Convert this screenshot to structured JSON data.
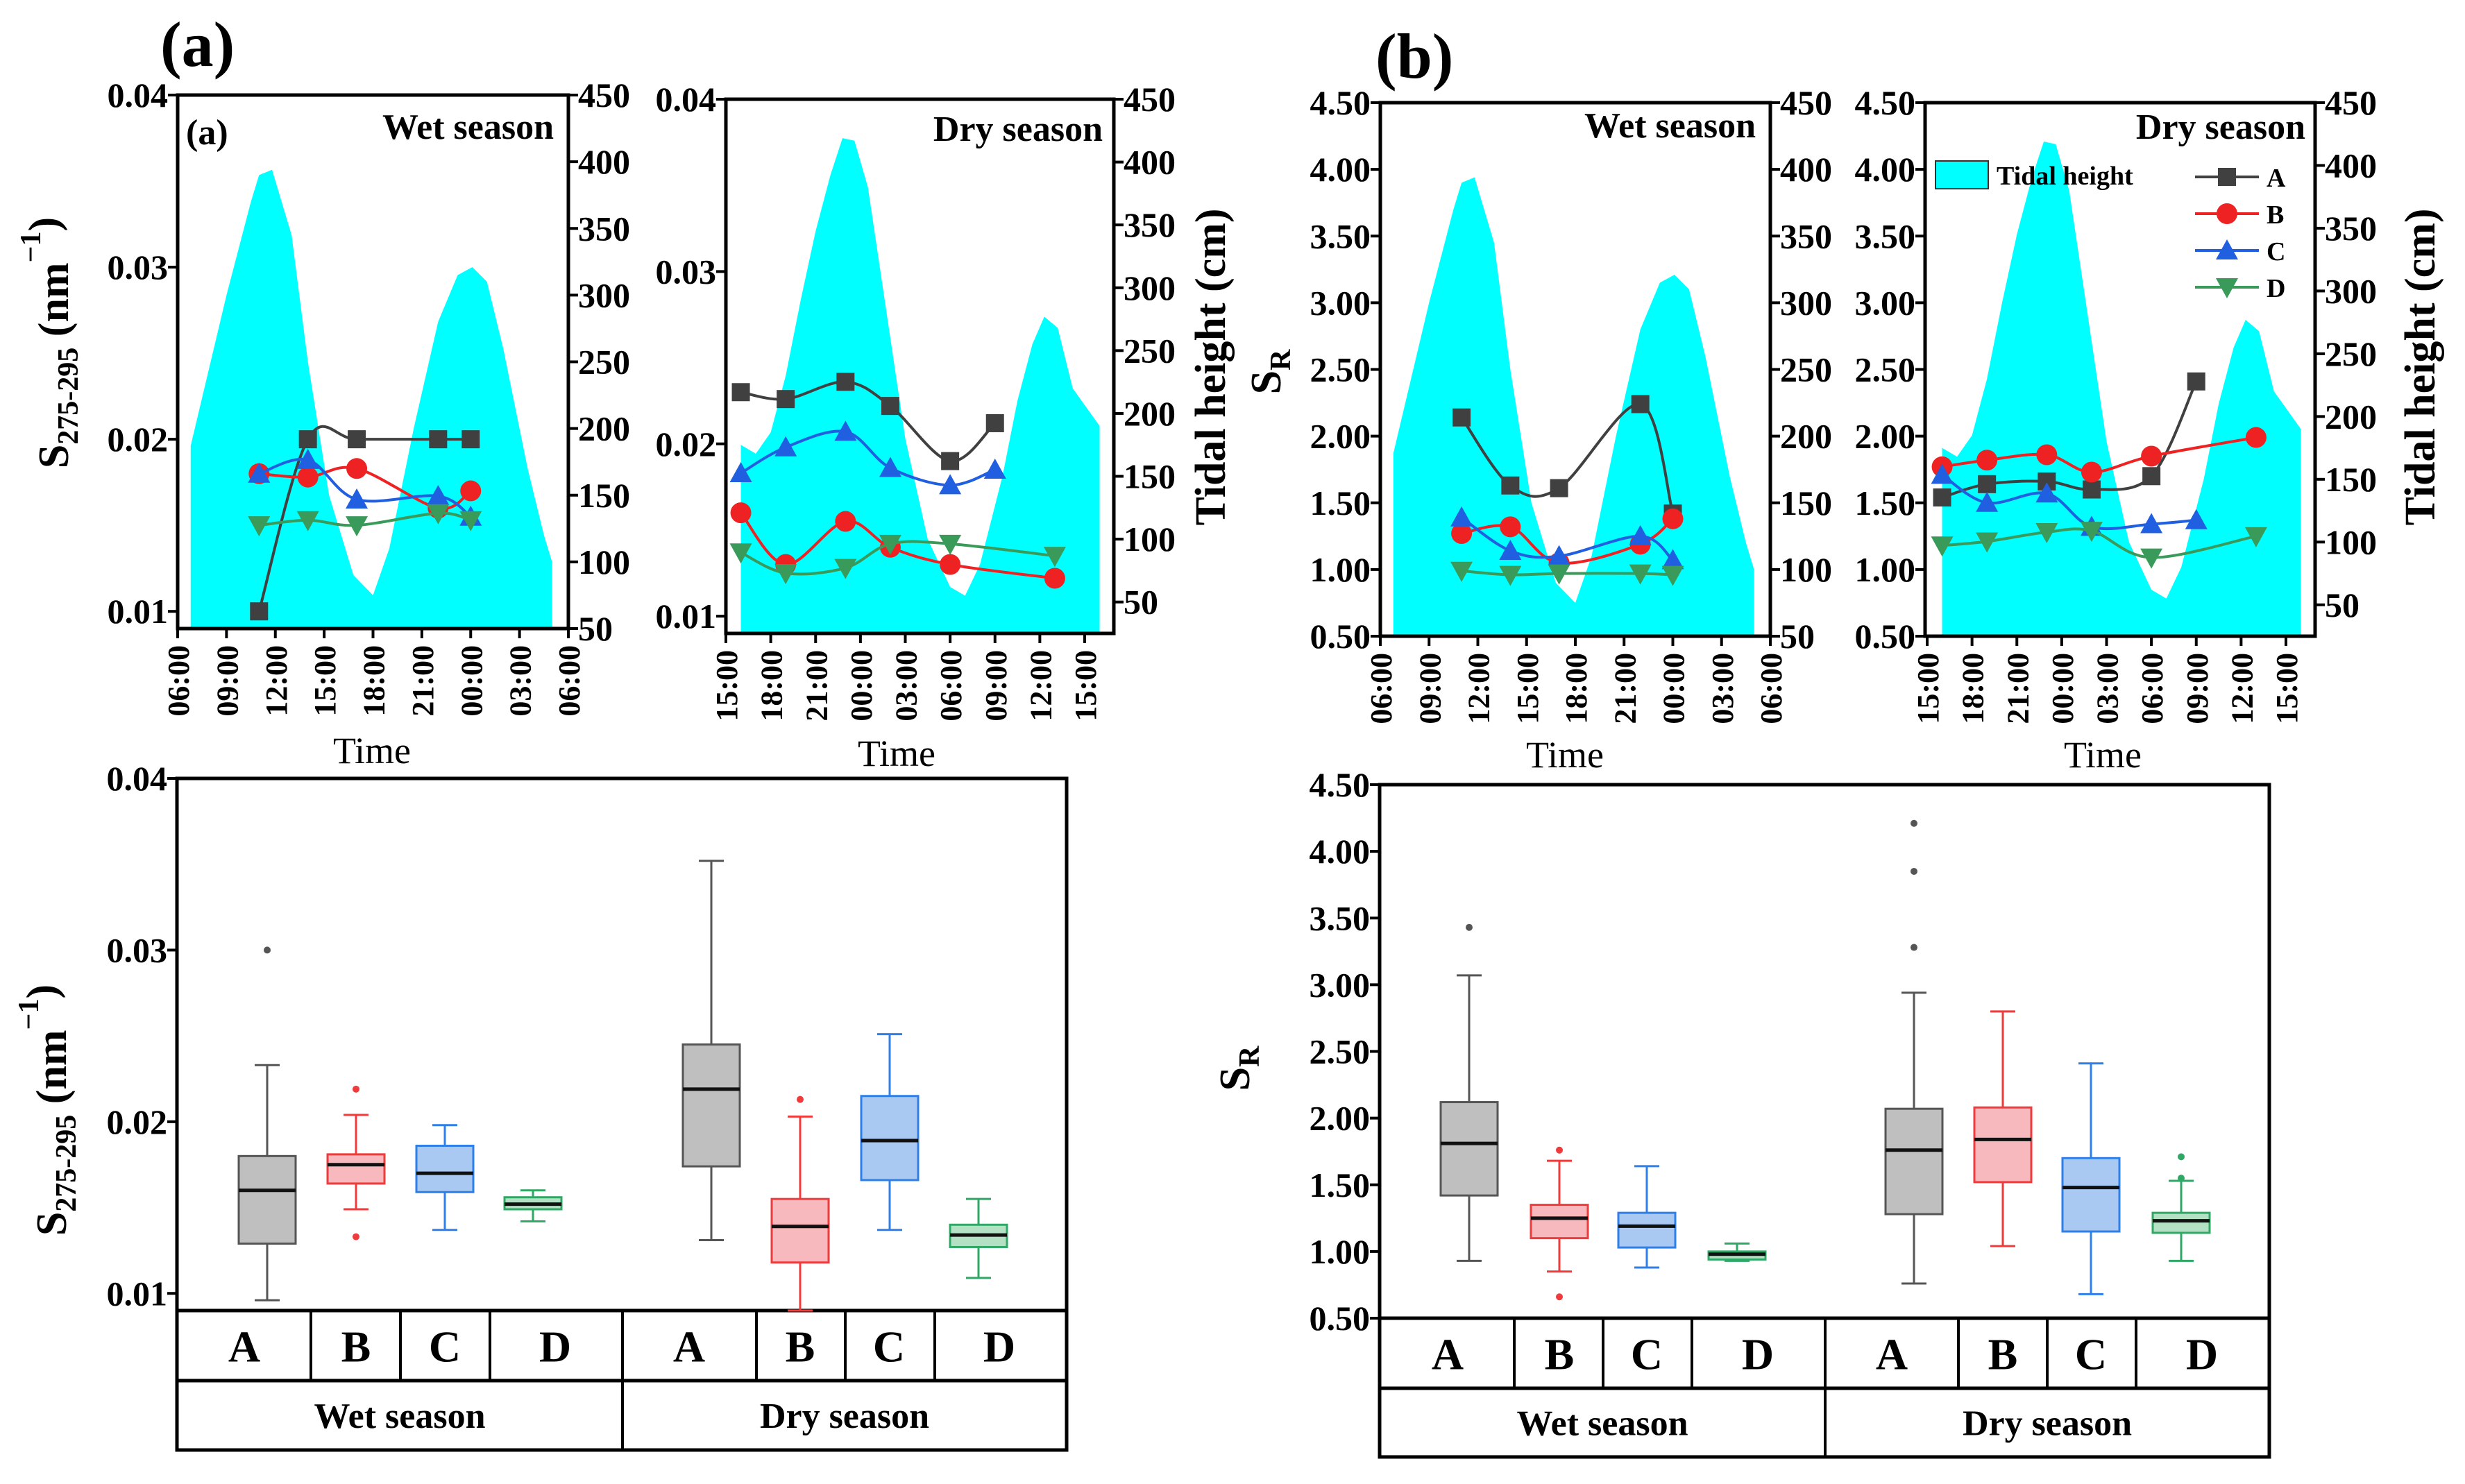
{
  "figure": {
    "panel_a": "(a)",
    "panel_b": "(b)",
    "inner_a": "(a)"
  },
  "colors": {
    "tide": "#00FFFF",
    "A": "#404040",
    "B": "#EE2222",
    "C": "#1F5FE0",
    "D": "#3A9A5A",
    "boxA": [
      "#BFBFBF",
      "#555555"
    ],
    "boxB": [
      "#F7B9BD",
      "#EF3B3B"
    ],
    "boxC": [
      "#A9C8F2",
      "#2F7FE8"
    ],
    "boxD": [
      "#B4E0C4",
      "#2FA866"
    ]
  },
  "chart_data": [
    {
      "id": "a_wet",
      "type": "line",
      "title": "Wet season",
      "xlabel": "Time",
      "ylabel": {
        "symbol": "S",
        "sub": "275-295",
        "unit": " (nm",
        "sup": "−1",
        "close": ")"
      },
      "y2label": "Tidal height (cm)",
      "xticks": [
        "06:00",
        "09:00",
        "12:00",
        "15:00",
        "18:00",
        "21:00",
        "00:00",
        "03:00",
        "06:00"
      ],
      "xlim_hours": [
        0,
        24
      ],
      "ylim": [
        0.009,
        0.04
      ],
      "yticks": [
        "0.01",
        "0.02",
        "0.03",
        "0.04"
      ],
      "ytick_values": [
        0.01,
        0.02,
        0.03,
        0.04
      ],
      "y2lim": [
        50,
        450
      ],
      "y2ticks": [
        "50",
        "100",
        "150",
        "200",
        "250",
        "300",
        "350",
        "400",
        "450"
      ],
      "y2tick_values": [
        50,
        100,
        150,
        200,
        250,
        300,
        350,
        400,
        450
      ],
      "tide": {
        "name": "Tidal height",
        "x": [
          0.8,
          3,
          4.5,
          5,
          5.8,
          7,
          8,
          9.3,
          10.8,
          12,
          13,
          14.5,
          16,
          17.2,
          18.1,
          19,
          20,
          21.5,
          22.5,
          23
        ],
        "y": [
          187,
          300,
          370,
          390,
          394,
          345,
          250,
          150,
          90,
          75,
          110,
          200,
          280,
          315,
          321,
          310,
          260,
          170,
          120,
          100
        ]
      },
      "series": [
        {
          "name": "A",
          "x": [
            5,
            8,
            11,
            16,
            18
          ],
          "y": [
            0.01,
            0.02,
            0.02,
            0.02,
            0.02
          ]
        },
        {
          "name": "B",
          "x": [
            5,
            8,
            11,
            16,
            18
          ],
          "y": [
            0.018,
            0.0178,
            0.0183,
            0.016,
            0.017
          ]
        },
        {
          "name": "C",
          "x": [
            5,
            8,
            11,
            16,
            18
          ],
          "y": [
            0.018,
            0.0188,
            0.0165,
            0.0167,
            0.0155
          ]
        },
        {
          "name": "D",
          "x": [
            5,
            8,
            11,
            16,
            18
          ],
          "y": [
            0.015,
            0.0153,
            0.015,
            0.0157,
            0.0153
          ]
        }
      ]
    },
    {
      "id": "a_dry",
      "type": "line",
      "title": "Dry season",
      "xlabel": "Time",
      "xticks": [
        "15:00",
        "18:00",
        "21:00",
        "00:00",
        "03:00",
        "06:00",
        "09:00",
        "12:00",
        "15:00"
      ],
      "xlim_hours": [
        0,
        24
      ],
      "ylim": [
        0.009,
        0.04
      ],
      "yticks": [
        "0.01",
        "0.02",
        "0.03",
        "0.04"
      ],
      "ytick_values": [
        0.01,
        0.02,
        0.03,
        0.04
      ],
      "y2lim": [
        25,
        450
      ],
      "y2ticks": [
        "50",
        "100",
        "150",
        "200",
        "250",
        "300",
        "350",
        "400",
        "450"
      ],
      "y2tick_values": [
        50,
        100,
        150,
        200,
        250,
        300,
        350,
        400,
        450
      ],
      "y2label": "Tidal height (cm)",
      "tide": {
        "name": "Tidal height",
        "x": [
          1,
          2,
          3,
          4,
          5,
          6,
          7,
          7.8,
          8.6,
          9.5,
          10.5,
          12,
          13.5,
          15,
          16,
          17,
          18.5,
          19.5,
          20.5,
          21.3,
          22.2,
          23.2,
          25
        ],
        "y": [
          175,
          168,
          185,
          230,
          290,
          345,
          390,
          419,
          417,
          380,
          300,
          180,
          100,
          62,
          55,
          80,
          150,
          210,
          255,
          277,
          268,
          220,
          190
        ]
      },
      "series": [
        {
          "name": "A",
          "x": [
            1,
            4,
            8,
            11,
            15,
            18
          ],
          "y": [
            0.023,
            0.0226,
            0.0236,
            0.0222,
            0.019,
            0.0212
          ]
        },
        {
          "name": "B",
          "x": [
            1,
            4,
            8,
            11,
            15,
            22
          ],
          "y": [
            0.016,
            0.013,
            0.0155,
            0.014,
            0.013,
            0.0122
          ]
        },
        {
          "name": "C",
          "x": [
            1,
            4,
            8,
            11,
            15,
            18
          ],
          "y": [
            0.0183,
            0.0198,
            0.0207,
            0.0186,
            0.0176,
            0.0185
          ]
        },
        {
          "name": "D",
          "x": [
            1,
            4,
            8,
            11,
            15,
            22
          ],
          "y": [
            0.0137,
            0.0125,
            0.0128,
            0.0142,
            0.0142,
            0.0135
          ]
        }
      ]
    },
    {
      "id": "b_wet",
      "type": "line",
      "title": "Wet season",
      "xlabel": "Time",
      "ylabel": {
        "symbol": "S",
        "sub": "R"
      },
      "xticks": [
        "06:00",
        "09:00",
        "12:00",
        "15:00",
        "18:00",
        "21:00",
        "00:00",
        "03:00",
        "06:00"
      ],
      "xlim_hours": [
        0,
        24
      ],
      "ylim": [
        0.5,
        4.5
      ],
      "yticks": [
        "0.50",
        "1.00",
        "1.50",
        "2.00",
        "2.50",
        "3.00",
        "3.50",
        "4.00",
        "4.50"
      ],
      "ytick_values": [
        0.5,
        1,
        1.5,
        2,
        2.5,
        3,
        3.5,
        4,
        4.5
      ],
      "y2lim": [
        50,
        450
      ],
      "y2ticks": [
        "50",
        "100",
        "150",
        "200",
        "250",
        "300",
        "350",
        "400",
        "450"
      ],
      "y2tick_values": [
        50,
        100,
        150,
        200,
        250,
        300,
        350,
        400,
        450
      ],
      "tide": {
        "name": "Tidal height",
        "x": [
          0.8,
          3,
          4.5,
          5,
          5.8,
          7,
          8,
          9.3,
          10.8,
          12,
          13,
          14.5,
          16,
          17.2,
          18.1,
          19,
          20,
          21.5,
          22.5,
          23
        ],
        "y": [
          187,
          300,
          370,
          390,
          394,
          345,
          250,
          150,
          90,
          75,
          110,
          200,
          280,
          315,
          321,
          310,
          260,
          170,
          120,
          100
        ]
      },
      "series": [
        {
          "name": "A",
          "x": [
            5,
            8,
            11,
            16,
            18
          ],
          "y": [
            2.14,
            1.63,
            1.61,
            2.24,
            1.42
          ]
        },
        {
          "name": "B",
          "x": [
            5,
            8,
            11,
            16,
            18
          ],
          "y": [
            1.27,
            1.32,
            1.05,
            1.19,
            1.38
          ]
        },
        {
          "name": "C",
          "x": [
            5,
            8,
            11,
            16,
            18
          ],
          "y": [
            1.39,
            1.14,
            1.1,
            1.25,
            1.07
          ]
        },
        {
          "name": "D",
          "x": [
            5,
            8,
            11,
            16,
            18
          ],
          "y": [
            0.99,
            0.96,
            0.97,
            0.97,
            0.96
          ]
        }
      ]
    },
    {
      "id": "b_dry",
      "type": "line",
      "title": "Dry season",
      "xlabel": "Time",
      "y2label": "Tidal height (cm)",
      "legend_tide": "Tidal height",
      "legend": [
        "A",
        "B",
        "C",
        "D"
      ],
      "xticks": [
        "15:00",
        "18:00",
        "21:00",
        "00:00",
        "03:00",
        "06:00",
        "09:00",
        "12:00",
        "15:00"
      ],
      "xlim_hours": [
        0,
        24
      ],
      "ylim": [
        0.5,
        4.5
      ],
      "yticks": [
        "0.50",
        "1.00",
        "1.50",
        "2.00",
        "2.50",
        "3.00",
        "3.50",
        "4.00",
        "4.50"
      ],
      "ytick_values": [
        0.5,
        1,
        1.5,
        2,
        2.5,
        3,
        3.5,
        4,
        4.5
      ],
      "y2lim": [
        25,
        450
      ],
      "y2ticks": [
        "50",
        "100",
        "150",
        "200",
        "250",
        "300",
        "350",
        "400",
        "450"
      ],
      "y2tick_values": [
        50,
        100,
        150,
        200,
        250,
        300,
        350,
        400,
        450
      ],
      "tide": {
        "name": "Tidal height",
        "x": [
          1,
          2,
          3,
          4,
          5,
          6,
          7,
          7.8,
          8.6,
          9.5,
          10.5,
          12,
          13.5,
          15,
          16,
          17,
          18.5,
          19.5,
          20.5,
          21.3,
          22.2,
          23.2,
          25
        ],
        "y": [
          175,
          168,
          185,
          230,
          290,
          345,
          390,
          419,
          417,
          380,
          300,
          180,
          100,
          62,
          55,
          80,
          150,
          210,
          255,
          277,
          268,
          220,
          190
        ]
      },
      "series": [
        {
          "name": "A",
          "x": [
            1,
            4,
            8,
            11,
            15,
            18
          ],
          "y": [
            1.54,
            1.64,
            1.66,
            1.6,
            1.7,
            2.41
          ]
        },
        {
          "name": "B",
          "x": [
            1,
            4,
            8,
            11,
            15,
            22
          ],
          "y": [
            1.77,
            1.82,
            1.86,
            1.73,
            1.85,
            1.99
          ]
        },
        {
          "name": "C",
          "x": [
            1,
            4,
            8,
            11,
            15,
            18
          ],
          "y": [
            1.71,
            1.5,
            1.57,
            1.32,
            1.34,
            1.37
          ]
        },
        {
          "name": "D",
          "x": [
            1,
            4,
            8,
            11,
            15,
            22
          ],
          "y": [
            1.18,
            1.21,
            1.28,
            1.29,
            1.09,
            1.25
          ]
        }
      ]
    },
    {
      "id": "a_box",
      "type": "box",
      "ylabel": {
        "symbol": "S",
        "sub": "275-295",
        "unit": " (nm",
        "sup": "−1",
        "close": ")"
      },
      "ylim": [
        0.009,
        0.04
      ],
      "yticks": [
        "0.01",
        "0.02",
        "0.03",
        "0.04"
      ],
      "ytick_values": [
        0.01,
        0.02,
        0.03,
        0.04
      ],
      "seasons": [
        "Wet season",
        "Dry season"
      ],
      "boxes": [
        {
          "site": "A",
          "season": "Wet season",
          "min": 0.0096,
          "q1": 0.0129,
          "median": 0.016,
          "q3": 0.018,
          "max": 0.0233,
          "outliers": [
            0.03
          ]
        },
        {
          "site": "B",
          "season": "Wet season",
          "min": 0.0149,
          "q1": 0.0164,
          "median": 0.0175,
          "q3": 0.0181,
          "max": 0.0204,
          "outliers": [
            0.0219,
            0.0133
          ]
        },
        {
          "site": "C",
          "season": "Wet season",
          "min": 0.0137,
          "q1": 0.0159,
          "median": 0.017,
          "q3": 0.0186,
          "max": 0.0198,
          "outliers": []
        },
        {
          "site": "D",
          "season": "Wet season",
          "min": 0.0142,
          "q1": 0.0149,
          "median": 0.0152,
          "q3": 0.0156,
          "max": 0.016,
          "outliers": []
        },
        {
          "site": "A",
          "season": "Dry season",
          "min": 0.0131,
          "q1": 0.0174,
          "median": 0.0219,
          "q3": 0.0245,
          "max": 0.0352,
          "outliers": []
        },
        {
          "site": "B",
          "season": "Dry season",
          "min": 0.009,
          "q1": 0.0118,
          "median": 0.0139,
          "q3": 0.0155,
          "max": 0.0203,
          "outliers": [
            0.0213
          ]
        },
        {
          "site": "C",
          "season": "Dry season",
          "min": 0.0137,
          "q1": 0.0166,
          "median": 0.0189,
          "q3": 0.0215,
          "max": 0.0251,
          "outliers": []
        },
        {
          "site": "D",
          "season": "Dry season",
          "min": 0.0109,
          "q1": 0.0127,
          "median": 0.0134,
          "q3": 0.014,
          "max": 0.0155,
          "outliers": []
        }
      ]
    },
    {
      "id": "b_box",
      "type": "box",
      "ylabel": {
        "symbol": "S",
        "sub": "R"
      },
      "ylim": [
        0.5,
        4.5
      ],
      "yticks": [
        "0.50",
        "1.00",
        "1.50",
        "2.00",
        "2.50",
        "3.00",
        "3.50",
        "4.00",
        "4.50"
      ],
      "ytick_values": [
        0.5,
        1,
        1.5,
        2,
        2.5,
        3,
        3.5,
        4,
        4.5
      ],
      "seasons": [
        "Wet season",
        "Dry season"
      ],
      "boxes": [
        {
          "site": "A",
          "season": "Wet season",
          "min": 0.93,
          "q1": 1.42,
          "median": 1.81,
          "q3": 2.12,
          "max": 3.07,
          "outliers": [
            3.43
          ]
        },
        {
          "site": "B",
          "season": "Wet season",
          "min": 0.85,
          "q1": 1.1,
          "median": 1.25,
          "q3": 1.35,
          "max": 1.68,
          "outliers": [
            1.76,
            0.66
          ]
        },
        {
          "site": "C",
          "season": "Wet season",
          "min": 0.88,
          "q1": 1.03,
          "median": 1.19,
          "q3": 1.29,
          "max": 1.64,
          "outliers": []
        },
        {
          "site": "D",
          "season": "Wet season",
          "min": 0.93,
          "q1": 0.94,
          "median": 0.98,
          "q3": 1.0,
          "max": 1.06,
          "outliers": []
        },
        {
          "site": "A",
          "season": "Dry season",
          "min": 0.76,
          "q1": 1.28,
          "median": 1.76,
          "q3": 2.07,
          "max": 2.94,
          "outliers": [
            4.21,
            3.85,
            3.28
          ]
        },
        {
          "site": "B",
          "season": "Dry season",
          "min": 1.04,
          "q1": 1.52,
          "median": 1.84,
          "q3": 2.08,
          "max": 2.8,
          "outliers": []
        },
        {
          "site": "C",
          "season": "Dry season",
          "min": 0.68,
          "q1": 1.15,
          "median": 1.48,
          "q3": 1.7,
          "max": 2.41,
          "outliers": []
        },
        {
          "site": "D",
          "season": "Dry season",
          "min": 0.93,
          "q1": 1.14,
          "median": 1.23,
          "q3": 1.29,
          "max": 1.53,
          "outliers": [
            1.71,
            1.55
          ]
        }
      ]
    }
  ]
}
